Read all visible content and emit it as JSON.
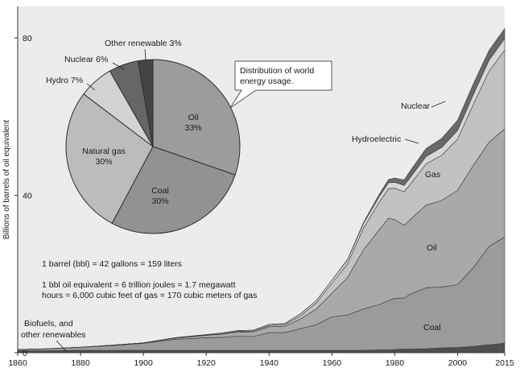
{
  "chart_data": [
    {
      "type": "area",
      "stacked": true,
      "ylabel": "Billions of barrels of oil equivalent",
      "xlabel": "",
      "xlim": [
        1860,
        2015
      ],
      "ylim": [
        0,
        88
      ],
      "x_ticks": [
        1860,
        1880,
        1900,
        1920,
        1940,
        1960,
        1980,
        2000,
        2015
      ],
      "y_ticks": [
        0,
        40,
        80
      ],
      "x": [
        1860,
        1870,
        1880,
        1890,
        1900,
        1910,
        1920,
        1925,
        1930,
        1935,
        1940,
        1945,
        1950,
        1955,
        1960,
        1965,
        1970,
        1975,
        1978,
        1980,
        1983,
        1985,
        1990,
        1995,
        2000,
        2005,
        2010,
        2015
      ],
      "series": [
        {
          "name": "Biofuels, and other renewables",
          "color": "#4f4f4f",
          "values": [
            0.5,
            0.5,
            0.6,
            0.6,
            0.6,
            0.6,
            0.6,
            0.6,
            0.6,
            0.6,
            0.6,
            0.6,
            0.6,
            0.6,
            0.6,
            0.6,
            0.6,
            0.7,
            0.7,
            0.8,
            0.9,
            0.9,
            1.0,
            1.2,
            1.3,
            1.6,
            2.0,
            2.4
          ]
        },
        {
          "name": "Coal",
          "color": "#9b9b9b",
          "values": [
            0.3,
            0.5,
            0.8,
            1.2,
            1.8,
            2.8,
            3.2,
            3.3,
            3.6,
            3.5,
            4.5,
            4.5,
            5.5,
            6.5,
            8.5,
            9.0,
            10.5,
            11.5,
            12.5,
            13.0,
            13.0,
            14.0,
            15.5,
            15.5,
            16.0,
            20.0,
            25.0,
            27.0
          ]
        },
        {
          "name": "Oil",
          "color": "#a9a9a9",
          "values": [
            0.0,
            0.0,
            0.0,
            0.1,
            0.1,
            0.3,
            0.6,
            0.8,
            1.0,
            1.2,
            1.5,
            1.6,
            2.5,
            4.0,
            6.0,
            9.5,
            15.0,
            19.0,
            21.0,
            20.0,
            18.5,
            19.0,
            21.0,
            22.0,
            24.0,
            26.0,
            26.5,
            27.5
          ]
        },
        {
          "name": "Gas",
          "color": "#c2c2c2",
          "values": [
            0.0,
            0.0,
            0.0,
            0.0,
            0.0,
            0.0,
            0.1,
            0.1,
            0.2,
            0.2,
            0.3,
            0.4,
            0.8,
            1.5,
            2.5,
            3.5,
            5.5,
            7.0,
            7.5,
            8.0,
            8.5,
            9.0,
            10.5,
            11.5,
            13.0,
            15.5,
            18.0,
            20.0
          ]
        },
        {
          "name": "Hydroelectric",
          "color": "#d7d7d7",
          "values": [
            0.0,
            0.0,
            0.0,
            0.0,
            0.0,
            0.1,
            0.1,
            0.2,
            0.2,
            0.2,
            0.3,
            0.3,
            0.5,
            0.6,
            0.8,
            1.0,
            1.2,
            1.4,
            1.5,
            1.5,
            1.6,
            1.7,
            1.9,
            2.0,
            2.2,
            2.5,
            2.8,
            3.0
          ]
        },
        {
          "name": "Nuclear",
          "color": "#696969",
          "values": [
            0,
            0,
            0,
            0,
            0,
            0,
            0,
            0,
            0,
            0,
            0,
            0,
            0,
            0,
            0.0,
            0.1,
            0.2,
            0.6,
            0.8,
            1.1,
            1.4,
            1.7,
            2.0,
            2.3,
            2.6,
            2.7,
            2.5,
            2.5
          ]
        }
      ],
      "annotations": [
        "1 barrel (bbl) = 42 gallons = 159 liters",
        "1 bbl oil equivalent = 6 trillion joules = 1.7 megawatt",
        "hours = 6,000 cubic feet of gas = 170 cubic meters of gas"
      ],
      "series_labels": {
        "nuclear": "Nuclear",
        "hydro": "Hydroelectric",
        "gas": "Gas",
        "oil": "Oil",
        "coal": "Coal",
        "bio_line1": "Biofuels, and",
        "bio_line2": "other renewables"
      }
    },
    {
      "type": "pie",
      "caption_line1": "Distribution of world",
      "caption_line2": "energy usage.",
      "slices": [
        {
          "label": "Oil",
          "value": 33,
          "pct_text": "33%",
          "color": "#9c9c9c"
        },
        {
          "label": "Coal",
          "value": 30,
          "pct_text": "30%",
          "color": "#929292"
        },
        {
          "label": "Natural gas",
          "value": 30,
          "pct_text": "30%",
          "color": "#bcbcbc"
        },
        {
          "label": "Hydro",
          "value": 7,
          "pct_text": "Hydro 7%",
          "color": "#d3d3d3"
        },
        {
          "label": "Nuclear",
          "value": 6,
          "pct_text": "Nuclear 6%",
          "color": "#666666"
        },
        {
          "label": "Other renewable",
          "value": 3,
          "pct_text": "Other renewable 3%",
          "color": "#444444"
        }
      ]
    }
  ],
  "colors": {
    "plot_background": "#ececec",
    "axis": "#333333",
    "callout_fill": "#ffffff",
    "callout_stroke": "#555555"
  }
}
